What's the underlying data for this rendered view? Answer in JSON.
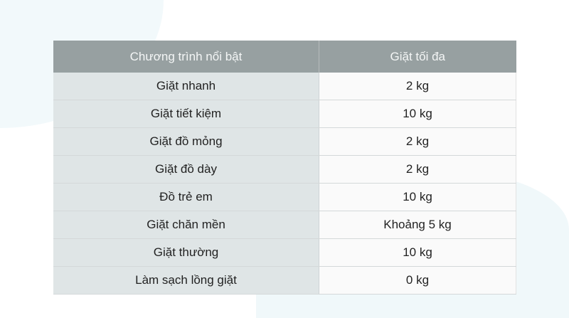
{
  "table": {
    "headers": [
      "Chương trình nổi bật",
      "Giặt tối đa"
    ],
    "rows": [
      [
        "Giặt nhanh",
        "2 kg"
      ],
      [
        "Giặt tiết kiệm",
        "10 kg"
      ],
      [
        "Giặt đồ mỏng",
        "2 kg"
      ],
      [
        "Giặt đồ dày",
        "2 kg"
      ],
      [
        "Đồ trẻ em",
        "10 kg"
      ],
      [
        "Giặt chăn mền",
        "Khoảng 5 kg"
      ],
      [
        "Giặt thường",
        "10 kg"
      ],
      [
        "Làm sạch lồng giặt",
        "0 kg"
      ]
    ]
  },
  "colors": {
    "header": "#97a0a1",
    "first_column": "#dfe5e6",
    "second_column": "#fafafa"
  }
}
